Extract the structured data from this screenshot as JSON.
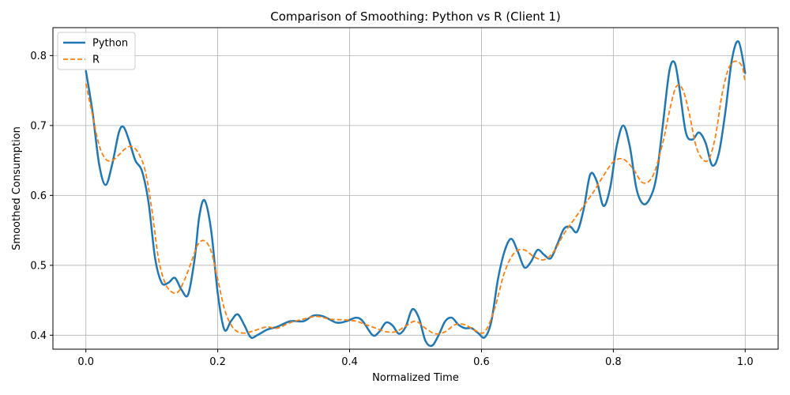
{
  "chart_data": {
    "type": "line",
    "title": "Comparison of Smoothing: Python vs R (Client 1)",
    "xlabel": "Normalized Time",
    "ylabel": "Smoothed Consumption",
    "xlim": [
      -0.05,
      1.05
    ],
    "ylim": [
      0.38,
      0.84
    ],
    "xticks": [
      "0.0",
      "0.2",
      "0.4",
      "0.6",
      "0.8",
      "1.0"
    ],
    "yticks": [
      "0.4",
      "0.5",
      "0.6",
      "0.7",
      "0.8"
    ],
    "grid": true,
    "legend_position": "top-left",
    "series": [
      {
        "name": "Python",
        "color": "#1f77b4",
        "style": "solid",
        "x": [
          0.0,
          0.01,
          0.02,
          0.03,
          0.04,
          0.05,
          0.057,
          0.065,
          0.075,
          0.085,
          0.095,
          0.105,
          0.115,
          0.125,
          0.135,
          0.145,
          0.155,
          0.165,
          0.172,
          0.18,
          0.19,
          0.2,
          0.21,
          0.22,
          0.23,
          0.24,
          0.25,
          0.26,
          0.275,
          0.29,
          0.31,
          0.33,
          0.345,
          0.36,
          0.38,
          0.395,
          0.41,
          0.42,
          0.435,
          0.445,
          0.455,
          0.465,
          0.475,
          0.485,
          0.495,
          0.505,
          0.515,
          0.525,
          0.535,
          0.545,
          0.555,
          0.565,
          0.575,
          0.585,
          0.595,
          0.605,
          0.615,
          0.625,
          0.635,
          0.645,
          0.655,
          0.665,
          0.675,
          0.685,
          0.695,
          0.705,
          0.715,
          0.725,
          0.735,
          0.745,
          0.755,
          0.765,
          0.775,
          0.785,
          0.795,
          0.805,
          0.815,
          0.825,
          0.835,
          0.845,
          0.855,
          0.865,
          0.875,
          0.885,
          0.893,
          0.9,
          0.91,
          0.92,
          0.93,
          0.94,
          0.95,
          0.96,
          0.97,
          0.98,
          0.99,
          1.0
        ],
        "y": [
          0.778,
          0.72,
          0.645,
          0.615,
          0.645,
          0.69,
          0.698,
          0.68,
          0.65,
          0.635,
          0.59,
          0.51,
          0.475,
          0.475,
          0.482,
          0.465,
          0.458,
          0.51,
          0.57,
          0.593,
          0.55,
          0.46,
          0.408,
          0.42,
          0.43,
          0.415,
          0.397,
          0.4,
          0.408,
          0.412,
          0.42,
          0.42,
          0.428,
          0.427,
          0.418,
          0.42,
          0.425,
          0.42,
          0.4,
          0.405,
          0.418,
          0.414,
          0.402,
          0.412,
          0.437,
          0.425,
          0.392,
          0.385,
          0.4,
          0.42,
          0.425,
          0.415,
          0.41,
          0.41,
          0.403,
          0.397,
          0.42,
          0.48,
          0.52,
          0.538,
          0.52,
          0.497,
          0.505,
          0.522,
          0.515,
          0.51,
          0.53,
          0.552,
          0.555,
          0.548,
          0.58,
          0.63,
          0.62,
          0.585,
          0.61,
          0.67,
          0.7,
          0.67,
          0.61,
          0.588,
          0.595,
          0.625,
          0.7,
          0.778,
          0.79,
          0.755,
          0.69,
          0.68,
          0.69,
          0.675,
          0.643,
          0.66,
          0.72,
          0.795,
          0.82,
          0.775
        ],
        "width": 2.5
      },
      {
        "name": "R",
        "color": "#ff7f0e",
        "style": "dashed",
        "x": [
          0.0,
          0.01,
          0.02,
          0.03,
          0.04,
          0.05,
          0.06,
          0.07,
          0.08,
          0.09,
          0.1,
          0.11,
          0.12,
          0.13,
          0.14,
          0.15,
          0.16,
          0.17,
          0.18,
          0.19,
          0.2,
          0.21,
          0.22,
          0.23,
          0.24,
          0.25,
          0.26,
          0.275,
          0.29,
          0.31,
          0.33,
          0.35,
          0.37,
          0.39,
          0.41,
          0.425,
          0.44,
          0.455,
          0.47,
          0.485,
          0.5,
          0.515,
          0.53,
          0.545,
          0.56,
          0.575,
          0.59,
          0.605,
          0.62,
          0.635,
          0.65,
          0.665,
          0.68,
          0.695,
          0.71,
          0.725,
          0.74,
          0.755,
          0.77,
          0.785,
          0.8,
          0.815,
          0.83,
          0.845,
          0.86,
          0.875,
          0.885,
          0.895,
          0.905,
          0.915,
          0.925,
          0.935,
          0.945,
          0.955,
          0.965,
          0.975,
          0.985,
          0.995,
          1.0
        ],
        "y": [
          0.76,
          0.715,
          0.672,
          0.652,
          0.65,
          0.658,
          0.667,
          0.67,
          0.66,
          0.635,
          0.58,
          0.51,
          0.475,
          0.462,
          0.462,
          0.48,
          0.505,
          0.53,
          0.535,
          0.52,
          0.48,
          0.438,
          0.415,
          0.405,
          0.403,
          0.405,
          0.408,
          0.412,
          0.41,
          0.418,
          0.423,
          0.427,
          0.423,
          0.422,
          0.42,
          0.415,
          0.41,
          0.405,
          0.405,
          0.413,
          0.42,
          0.41,
          0.402,
          0.405,
          0.415,
          0.415,
          0.407,
          0.405,
          0.438,
          0.49,
          0.518,
          0.522,
          0.512,
          0.508,
          0.52,
          0.545,
          0.565,
          0.585,
          0.605,
          0.628,
          0.648,
          0.652,
          0.638,
          0.618,
          0.628,
          0.675,
          0.72,
          0.755,
          0.752,
          0.718,
          0.672,
          0.652,
          0.652,
          0.685,
          0.745,
          0.782,
          0.792,
          0.785,
          0.762
        ],
        "width": 1.8
      }
    ]
  }
}
